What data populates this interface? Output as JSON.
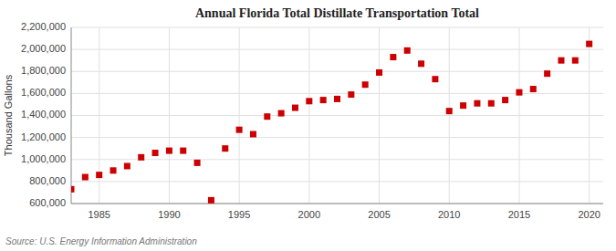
{
  "chart_data": {
    "type": "scatter",
    "title": "Annual Florida Total Distillate Transportation Total",
    "ylabel": "Thousand Gallons",
    "source": "Source: U.S. Energy Information Administration",
    "x": [
      1983,
      1984,
      1985,
      1986,
      1987,
      1988,
      1989,
      1990,
      1991,
      1992,
      1993,
      1994,
      1995,
      1996,
      1997,
      1998,
      1999,
      2000,
      2001,
      2002,
      2003,
      2004,
      2005,
      2006,
      2007,
      2008,
      2009,
      2010,
      2011,
      2012,
      2013,
      2014,
      2015,
      2016,
      2017,
      2018,
      2019,
      2020
    ],
    "values": [
      730000,
      840000,
      860000,
      900000,
      940000,
      1020000,
      1060000,
      1080000,
      1080000,
      970000,
      630000,
      1100000,
      1270000,
      1230000,
      1390000,
      1420000,
      1470000,
      1530000,
      1540000,
      1550000,
      1590000,
      1680000,
      1790000,
      1930000,
      1990000,
      1870000,
      1730000,
      1440000,
      1490000,
      1510000,
      1510000,
      1540000,
      1610000,
      1640000,
      1780000,
      1900000,
      1900000,
      2050000
    ],
    "color": "#cc0000",
    "marker": "square",
    "xlim": [
      1983,
      2021
    ],
    "xticks": [
      1985,
      1990,
      1995,
      2000,
      2005,
      2010,
      2015,
      2020
    ],
    "ylim": [
      600000,
      2200000
    ],
    "yticks": [
      {
        "value": 600000,
        "label": "600,000"
      },
      {
        "value": 800000,
        "label": "800,000"
      },
      {
        "value": 1000000,
        "label": "1,000,000"
      },
      {
        "value": 1200000,
        "label": "1,200,000"
      },
      {
        "value": 1400000,
        "label": "1,400,000"
      },
      {
        "value": 1600000,
        "label": "1,600,000"
      },
      {
        "value": 1800000,
        "label": "1,800,000"
      },
      {
        "value": 2000000,
        "label": "2,000,000"
      },
      {
        "value": 2200000,
        "label": "2,200,000"
      }
    ],
    "grid": true
  }
}
